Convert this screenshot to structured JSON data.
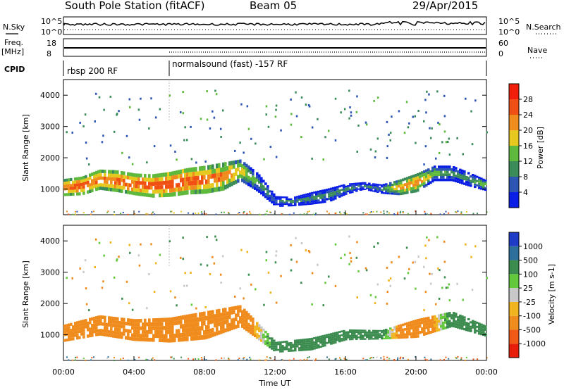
{
  "header": {
    "station": "South Pole Station (fitACF)",
    "beam": "Beam 05",
    "date": "29/Apr/2015"
  },
  "summary": {
    "nsky_label": "N.Sky",
    "nsky_ticks": [
      "10^5",
      "10^0"
    ],
    "nsearch_label": "N.Search",
    "freq_label_line1": "Freq.",
    "freq_label_line2": "[MHz]",
    "freq_ticks": [
      "18",
      "8"
    ],
    "nave_label": "Nave",
    "nave_ticks": [
      "60",
      "0"
    ],
    "cpid_label": "CPID",
    "cpid_segments": [
      "rbsp 200 RF",
      "normalsound (fast) -157 RF"
    ],
    "cpid_switch_time": "06:00"
  },
  "colors": {
    "power_scale": [
      "#0a1ee6",
      "#2d55b4",
      "#3c8c5a",
      "#5fb93c",
      "#e6c81e",
      "#f08c1e",
      "#f05014",
      "#f01e0a"
    ],
    "velocity_scale": [
      "#1e3cc8",
      "#2d6e9b",
      "#3c8c50",
      "#64c83c",
      "#c8c8c8",
      "#f0b41e",
      "#f08c1e",
      "#f05a14",
      "#e61e0a"
    ]
  },
  "chart_data": [
    {
      "type": "heatmap",
      "title": "Power",
      "xlabel": "Time UT",
      "ylabel": "Slant Range [km]",
      "x_ticks": [
        "00:00",
        "04:00",
        "08:00",
        "12:00",
        "16:00",
        "20:00",
        "00:00"
      ],
      "x_range_hours": [
        0,
        24
      ],
      "y_ticks": [
        1000,
        2000,
        3000,
        4000
      ],
      "ylim": [
        180,
        4500
      ],
      "colorbar": {
        "label": "Power [dB]",
        "ticks": [
          4,
          8,
          12,
          16,
          20,
          24,
          28
        ],
        "range": [
          0,
          32
        ]
      },
      "echo_bands": [
        {
          "t": 0.0,
          "center": 1050,
          "width": 550,
          "power": 26
        },
        {
          "t": 1.0,
          "center": 1100,
          "width": 600,
          "power": 28
        },
        {
          "t": 2.0,
          "center": 1300,
          "width": 650,
          "power": 26
        },
        {
          "t": 3.0,
          "center": 1250,
          "width": 700,
          "power": 27
        },
        {
          "t": 4.0,
          "center": 1150,
          "width": 700,
          "power": 28
        },
        {
          "t": 5.0,
          "center": 1100,
          "width": 750,
          "power": 28
        },
        {
          "t": 6.0,
          "center": 1150,
          "width": 800,
          "power": 29
        },
        {
          "t": 7.0,
          "center": 1250,
          "width": 850,
          "power": 28
        },
        {
          "t": 8.0,
          "center": 1300,
          "width": 900,
          "power": 27
        },
        {
          "t": 9.0,
          "center": 1400,
          "width": 900,
          "power": 25
        },
        {
          "t": 10.0,
          "center": 1600,
          "width": 700,
          "power": 22
        },
        {
          "t": 11.0,
          "center": 1200,
          "width": 600,
          "power": 14
        },
        {
          "t": 12.0,
          "center": 600,
          "width": 350,
          "power": 10
        },
        {
          "t": 13.0,
          "center": 600,
          "width": 300,
          "power": 11
        },
        {
          "t": 14.0,
          "center": 700,
          "width": 400,
          "power": 12
        },
        {
          "t": 15.0,
          "center": 800,
          "width": 450,
          "power": 13
        },
        {
          "t": 16.0,
          "center": 1000,
          "width": 350,
          "power": 12
        },
        {
          "t": 17.0,
          "center": 1100,
          "width": 250,
          "power": 10
        },
        {
          "t": 18.0,
          "center": 1000,
          "width": 300,
          "power": 11
        },
        {
          "t": 19.0,
          "center": 1050,
          "width": 500,
          "power": 24
        },
        {
          "t": 20.0,
          "center": 1200,
          "width": 600,
          "power": 24
        },
        {
          "t": 21.0,
          "center": 1500,
          "width": 500,
          "power": 16
        },
        {
          "t": 22.0,
          "center": 1500,
          "width": 500,
          "power": 12
        },
        {
          "t": 23.0,
          "center": 1300,
          "width": 450,
          "power": 12
        },
        {
          "t": 24.0,
          "center": 1100,
          "width": 350,
          "power": 18
        }
      ]
    },
    {
      "type": "heatmap",
      "title": "Velocity",
      "xlabel": "Time UT",
      "ylabel": "Slant Range [km]",
      "x_ticks": [
        "00:00",
        "04:00",
        "08:00",
        "12:00",
        "16:00",
        "20:00",
        "00:00"
      ],
      "x_range_hours": [
        0,
        24
      ],
      "y_ticks": [
        1000,
        2000,
        3000,
        4000
      ],
      "ylim": [
        180,
        4500
      ],
      "colorbar": {
        "label": "Velocity [m s-1]",
        "ticks": [
          1000,
          500,
          100,
          25,
          -25,
          -100,
          -500,
          -1000
        ]
      },
      "echo_bands": [
        {
          "t": 0.0,
          "center": 1050,
          "width": 550,
          "velocity": -150
        },
        {
          "t": 2.0,
          "center": 1300,
          "width": 650,
          "velocity": -150
        },
        {
          "t": 4.0,
          "center": 1150,
          "width": 700,
          "velocity": -200
        },
        {
          "t": 6.0,
          "center": 1150,
          "width": 800,
          "velocity": -250
        },
        {
          "t": 8.0,
          "center": 1300,
          "width": 900,
          "velocity": -250
        },
        {
          "t": 10.0,
          "center": 1600,
          "width": 700,
          "velocity": -300
        },
        {
          "t": 12.0,
          "center": 600,
          "width": 350,
          "velocity": 200
        },
        {
          "t": 14.0,
          "center": 700,
          "width": 400,
          "velocity": 150
        },
        {
          "t": 16.0,
          "center": 1000,
          "width": 350,
          "velocity": 200
        },
        {
          "t": 18.0,
          "center": 1000,
          "width": 300,
          "velocity": 150
        },
        {
          "t": 20.0,
          "center": 1200,
          "width": 600,
          "velocity": -400
        },
        {
          "t": 22.0,
          "center": 1500,
          "width": 500,
          "velocity": 200
        },
        {
          "t": 24.0,
          "center": 1100,
          "width": 350,
          "velocity": 250
        }
      ]
    }
  ]
}
